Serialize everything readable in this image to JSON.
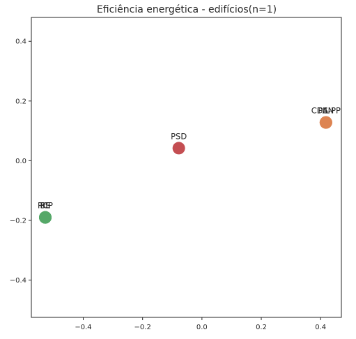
{
  "chart_data": {
    "type": "scatter",
    "title": "Eficiência energética - edifícios(n=1)",
    "xlabel": "",
    "ylabel": "",
    "xlim": [
      -0.575,
      0.47
    ],
    "ylim": [
      -0.525,
      0.48
    ],
    "grid": false,
    "x_ticks": [
      -0.4,
      -0.2,
      0.0,
      0.2,
      0.4
    ],
    "x_tick_labels": [
      "−0.4",
      "−0.2",
      "0.0",
      "0.2",
      "0.4"
    ],
    "y_ticks": [
      0.4,
      0.2,
      0.0,
      -0.2,
      -0.4
    ],
    "y_tick_labels": [
      "0.4",
      "0.2",
      "0.0",
      "−0.2",
      "−0.4"
    ],
    "points": [
      {
        "label": "CDS-PP",
        "x": 0.418,
        "y": 0.128,
        "color": "#dd8452"
      },
      {
        "label": "PAN",
        "x": 0.418,
        "y": 0.128,
        "color": "#dd8452"
      },
      {
        "label": "IL",
        "x": 0.418,
        "y": 0.128,
        "color": "#dd8452"
      },
      {
        "label": "PSD",
        "x": -0.078,
        "y": 0.042,
        "color": "#c44e52"
      },
      {
        "label": "PCP",
        "x": -0.528,
        "y": -0.19,
        "color": "#55a868"
      },
      {
        "label": "PS",
        "x": -0.528,
        "y": -0.19,
        "color": "#55a868"
      },
      {
        "label": "BE",
        "x": -0.528,
        "y": -0.19,
        "color": "#55a868"
      }
    ]
  }
}
